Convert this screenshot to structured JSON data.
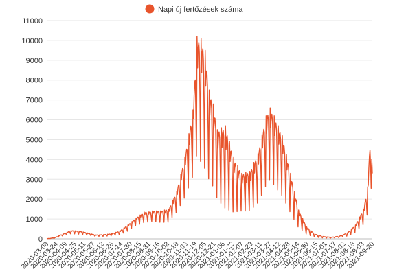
{
  "chart_data": {
    "type": "line",
    "legend": {
      "label": "Napi új fertőzések száma",
      "position": "top-center"
    },
    "color": "#e8542c",
    "grid": true,
    "ylim": [
      0,
      11000
    ],
    "y_ticks": [
      "0",
      "1000",
      "2000",
      "3000",
      "4000",
      "5000",
      "6000",
      "7000",
      "8000",
      "9000",
      "10000",
      "11000"
    ],
    "x_range": [
      "2020-03-08",
      "2021-09-20"
    ],
    "x_ticks": [
      "2020-03-08",
      "2020-03-24",
      "2020-04-09",
      "2020-04-25",
      "2020-05-11",
      "2020-05-27",
      "2020-06-12",
      "2020-06-28",
      "2020-07-14",
      "2020-07-30",
      "2020-08-15",
      "2020-08-31",
      "2020-09-16",
      "2020-10-02",
      "2020-10-18",
      "2020-11-03",
      "2020-11-19",
      "2020-12-05",
      "2020-12-21",
      "2021-01-06",
      "2021-01-22",
      "2021-02-07",
      "2021-02-23",
      "2021-03-11",
      "2021-03-27",
      "2021-04-12",
      "2021-04-28",
      "2021-05-14",
      "2021-05-30",
      "2021-06-15",
      "2021-07-01",
      "2021-07-17",
      "2021-08-02",
      "2021-08-18",
      "2021-09-03",
      "2021-09-20"
    ],
    "series": [
      {
        "weekly_high": [
          [
            "2020-03-08",
            5
          ],
          [
            "2020-03-22",
            60
          ],
          [
            "2020-04-05",
            250
          ],
          [
            "2020-04-19",
            420
          ],
          [
            "2020-05-03",
            390
          ],
          [
            "2020-05-17",
            300
          ],
          [
            "2020-05-31",
            200
          ],
          [
            "2020-06-14",
            210
          ],
          [
            "2020-06-28",
            260
          ],
          [
            "2020-07-12",
            400
          ],
          [
            "2020-07-26",
            700
          ],
          [
            "2020-08-09",
            1050
          ],
          [
            "2020-08-23",
            1350
          ],
          [
            "2020-09-06",
            1400
          ],
          [
            "2020-09-20",
            1400
          ],
          [
            "2020-10-04",
            1500
          ],
          [
            "2020-10-18",
            2400
          ],
          [
            "2020-11-01",
            4100
          ],
          [
            "2020-11-15",
            6500
          ],
          [
            "2020-11-22",
            10200
          ],
          [
            "2020-11-29",
            10100
          ],
          [
            "2020-12-06",
            9500
          ],
          [
            "2020-12-13",
            7500
          ],
          [
            "2020-12-20",
            6800
          ],
          [
            "2020-12-27",
            5500
          ],
          [
            "2021-01-10",
            5700
          ],
          [
            "2021-01-24",
            4100
          ],
          [
            "2021-02-07",
            3300
          ],
          [
            "2021-02-21",
            3400
          ],
          [
            "2021-03-07",
            4300
          ],
          [
            "2021-03-21",
            6200
          ],
          [
            "2021-03-28",
            6600
          ],
          [
            "2021-04-04",
            6200
          ],
          [
            "2021-04-18",
            5200
          ],
          [
            "2021-05-02",
            3300
          ],
          [
            "2021-05-16",
            1450
          ],
          [
            "2021-05-30",
            600
          ],
          [
            "2021-06-13",
            250
          ],
          [
            "2021-06-27",
            120
          ],
          [
            "2021-07-11",
            80
          ],
          [
            "2021-07-25",
            140
          ],
          [
            "2021-08-08",
            300
          ],
          [
            "2021-08-22",
            700
          ],
          [
            "2021-09-05",
            1500
          ],
          [
            "2021-09-12",
            2600
          ],
          [
            "2021-09-17",
            5400
          ],
          [
            "2021-09-20",
            3300
          ]
        ],
        "weekly_low": [
          [
            "2020-03-08",
            2
          ],
          [
            "2020-03-22",
            30
          ],
          [
            "2020-04-05",
            150
          ],
          [
            "2020-04-19",
            250
          ],
          [
            "2020-05-03",
            230
          ],
          [
            "2020-05-17",
            180
          ],
          [
            "2020-05-31",
            120
          ],
          [
            "2020-06-14",
            120
          ],
          [
            "2020-06-28",
            150
          ],
          [
            "2020-07-12",
            200
          ],
          [
            "2020-07-26",
            380
          ],
          [
            "2020-08-09",
            650
          ],
          [
            "2020-08-23",
            800
          ],
          [
            "2020-09-06",
            850
          ],
          [
            "2020-09-20",
            800
          ],
          [
            "2020-10-04",
            800
          ],
          [
            "2020-10-18",
            1300
          ],
          [
            "2020-11-01",
            2000
          ],
          [
            "2020-11-15",
            3000
          ],
          [
            "2020-11-22",
            4000
          ],
          [
            "2020-11-29",
            3500
          ],
          [
            "2020-12-06",
            3200
          ],
          [
            "2020-12-13",
            2700
          ],
          [
            "2020-12-20",
            2400
          ],
          [
            "2020-12-27",
            1800
          ],
          [
            "2021-01-10",
            1300
          ],
          [
            "2021-01-24",
            1200
          ],
          [
            "2021-02-07",
            1300
          ],
          [
            "2021-02-21",
            1300
          ],
          [
            "2021-03-07",
            1700
          ],
          [
            "2021-03-21",
            2500
          ],
          [
            "2021-03-28",
            2800
          ],
          [
            "2021-04-04",
            2500
          ],
          [
            "2021-04-18",
            2000
          ],
          [
            "2021-05-02",
            1200
          ],
          [
            "2021-05-16",
            500
          ],
          [
            "2021-05-30",
            200
          ],
          [
            "2021-06-13",
            80
          ],
          [
            "2021-06-27",
            40
          ],
          [
            "2021-07-11",
            30
          ],
          [
            "2021-07-25",
            60
          ],
          [
            "2021-08-08",
            130
          ],
          [
            "2021-08-22",
            300
          ],
          [
            "2021-09-05",
            700
          ],
          [
            "2021-09-12",
            1200
          ],
          [
            "2021-09-17",
            2000
          ],
          [
            "2021-09-20",
            3300
          ]
        ]
      }
    ]
  }
}
